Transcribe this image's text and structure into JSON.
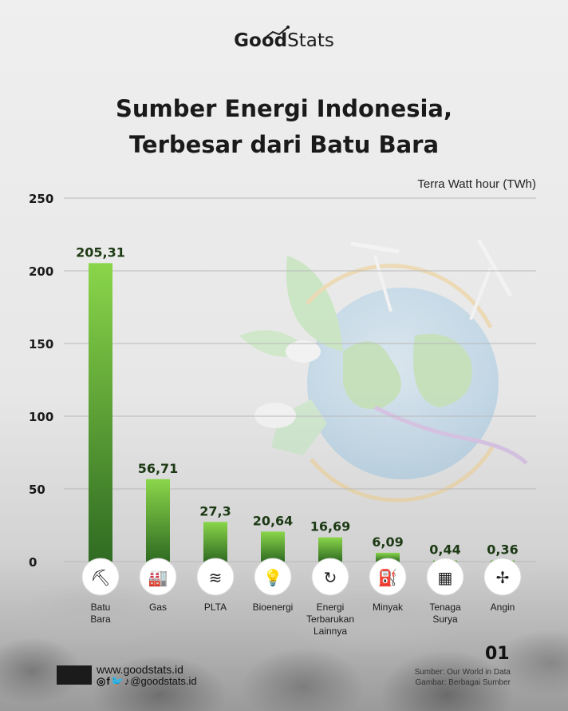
{
  "brand": {
    "good": "Good",
    "stats": "Stats"
  },
  "title_line1": "Sumber Energi Indonesia,",
  "title_line2": "Terbesar dari Batu Bara",
  "chart_data": {
    "type": "bar",
    "unit_label": "Terra Watt hour (TWh)",
    "categories": [
      [
        "Batu",
        "Bara"
      ],
      [
        "Gas"
      ],
      [
        "PLTA"
      ],
      [
        "Bioenergi"
      ],
      [
        "Energi",
        "Terbarukan",
        "Lainnya"
      ],
      [
        "Minyak"
      ],
      [
        "Tenaga",
        "Surya"
      ],
      [
        "Angin"
      ]
    ],
    "values": [
      205.31,
      56.71,
      27.3,
      20.64,
      16.69,
      6.09,
      0.44,
      0.36
    ],
    "value_labels": [
      "205,31",
      "56,71",
      "27,3",
      "20,64",
      "16,69",
      "6,09",
      "0,44",
      "0,36"
    ],
    "icons": [
      "coal-cart-icon",
      "gas-plant-icon",
      "dam-icon",
      "bioenergy-bulb-icon",
      "renewable-cycle-icon",
      "oil-rig-icon",
      "solar-panel-icon",
      "wind-turbine-icon"
    ],
    "yticks": [
      0,
      50,
      100,
      150,
      200,
      250
    ],
    "ylim": [
      0,
      250
    ],
    "grid": true,
    "bar_color_top": "#8ad64a",
    "bar_color_bottom": "#2f6b22"
  },
  "footer": {
    "website": "www.goodstats.id",
    "social_icons": "◎f🐦♪",
    "handle": "@goodstats.id",
    "page": "01",
    "source": "Sumber: Our World in Data",
    "image_credit": "Gambar: Berbagai Sumber"
  }
}
